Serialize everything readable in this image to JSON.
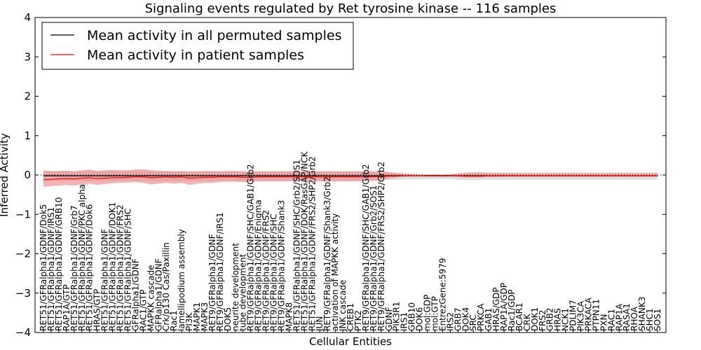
{
  "chart_data": {
    "type": "line",
    "title": "Signaling events regulated by Ret tyrosine kinase -- 116 samples",
    "xlabel": "Cellular Entities",
    "ylabel": "Inferred Activity",
    "ylim": [
      -4,
      4
    ],
    "yticks": [
      -4,
      -3,
      -2,
      -1,
      0,
      1,
      2,
      3,
      4
    ],
    "grid": false,
    "legend_position": "top-left",
    "categories": [
      "RET51/GFRalpha1/GDNF/Dok5",
      "RET51/GFRalpha1/GDNF/IRS1",
      "RET51/GFRalpha1/GDNF/GRB10",
      "RAP1A/GTP",
      "RET51/GFRalpha1/GDNF/Grb7",
      "RET51/GFRalpha1/GDNF/PKC alpha",
      "RET51/GFRalpha1/GDNF/Dok6",
      "HRAS/GTP",
      "RET51/GFRalpha1/GDNF",
      "RET51/GFRalpha1/GDNF/DOK1",
      "RET51/GFRalpha1/GDNF/FRS2",
      "RET51/GFRalpha1/GDNF/SHC",
      "GFRalpha1/GDNF",
      "RAC1/GTP",
      "MAPKK cascade",
      "GFRalpha1/GDNF",
      "Crk/p130 Cas/Paxillin",
      "Rac1",
      "lamellipodium assembly",
      "PI3K",
      "MAPK1",
      "MAPK3",
      "RET9/GFRalpha1/GDNF",
      "RET9/GFRalpha1/GDNF/IRS1",
      "DOK5",
      "neurite development",
      "tube development",
      "RET9/GFRalpha1/GDNF/SHC/GAB1/Grb2",
      "RET9/GFRalpha1/GDNF/Enigma",
      "RET9/GFRalpha1/GDNF/FRS2",
      "RET9/GFRalpha1/GDNF/SHC",
      "RET9/GFRalpha1/GDNF/Shank3",
      "MAPK8",
      "RET51/GFRalpha1/GDNF/SHC/Grb2/SOS1",
      "RET51/GFRalpha1/GDNF/DOK/RasGAP/NCK",
      "RET51/GFRalpha1/GDNF/FRS2/SHP2/Grb2",
      "JUN",
      "RET9/GFRalpha1/GDNF/Shank3/Grb2",
      "activation of MAPKK activity",
      "JNK cascade",
      "CREB1",
      "PTK2",
      "RET9/GFRalpha1/GDNF/SHC/GAB1/Grb2",
      "RET9/GFRalpha1/GDNF/Grb2/SOS1",
      "RET9/GFRalpha1/GDNF/FRS2/SHP2/Grb2",
      "GDNF",
      "PIK3R1",
      "IRS1",
      "GRB10",
      "DOK6",
      "mol:GDP",
      "mol:GTP",
      "EntrezGene:5979",
      "IRS2",
      "GRB7",
      "DOK4",
      "SRC",
      "PRKCA",
      "GAB1",
      "HRAS/GDP",
      "RAP1A/GDP",
      "Rac1/GDP",
      "BCAR1",
      "CRK",
      "DOK1",
      "FRS2",
      "GRB2",
      "HRAS",
      "NCK1",
      "PDLIM7",
      "PIK3CA",
      "PRKACA",
      "PTPN11",
      "PXN",
      "RAC1",
      "RAP1A",
      "RASA1",
      "RHOA",
      "SHANK3",
      "SHC1",
      "SOS1"
    ],
    "series": [
      {
        "name": "Mean activity in all permuted samples",
        "color": "#000000",
        "values": [
          -0.02,
          -0.02,
          -0.02,
          -0.02,
          -0.02,
          -0.02,
          -0.02,
          -0.02,
          -0.02,
          -0.02,
          -0.02,
          -0.02,
          -0.02,
          -0.02,
          -0.02,
          -0.02,
          -0.02,
          -0.02,
          -0.02,
          -0.02,
          -0.02,
          -0.02,
          -0.02,
          -0.02,
          -0.02,
          -0.02,
          -0.02,
          -0.02,
          -0.02,
          -0.02,
          -0.02,
          -0.02,
          -0.02,
          -0.02,
          -0.02,
          -0.02,
          -0.02,
          -0.02,
          -0.02,
          -0.02,
          -0.02,
          -0.02,
          -0.02,
          -0.02,
          -0.02,
          -0.02,
          -0.02,
          -0.02,
          -0.02,
          -0.02,
          -0.02,
          -0.02,
          -0.02,
          -0.02,
          -0.02,
          -0.02,
          -0.02,
          -0.02,
          -0.02,
          -0.02,
          -0.02,
          -0.02,
          -0.02,
          -0.02,
          -0.02,
          -0.02,
          -0.02,
          -0.02,
          -0.02,
          -0.02,
          -0.02,
          -0.02,
          -0.02,
          -0.02,
          -0.02,
          -0.02,
          -0.02,
          -0.02,
          -0.02,
          -0.02,
          -0.02
        ]
      },
      {
        "name": "Mean activity in patient samples",
        "color": "#ff0000",
        "values": [
          -0.12,
          -0.11,
          -0.1,
          -0.09,
          -0.1,
          -0.08,
          -0.07,
          -0.09,
          -0.08,
          -0.07,
          -0.07,
          -0.06,
          -0.05,
          -0.05,
          -0.07,
          -0.06,
          -0.05,
          -0.06,
          -0.05,
          -0.08,
          -0.07,
          -0.06,
          -0.06,
          -0.05,
          -0.05,
          -0.05,
          -0.06,
          -0.06,
          -0.05,
          -0.05,
          -0.05,
          -0.05,
          -0.05,
          -0.05,
          -0.05,
          -0.05,
          -0.05,
          -0.05,
          -0.05,
          -0.05,
          -0.05,
          -0.05,
          -0.05,
          -0.04,
          -0.04,
          -0.03,
          -0.03,
          -0.02,
          -0.02,
          -0.02,
          -0.01,
          -0.01,
          -0.01,
          -0.01,
          -0.02,
          -0.03,
          -0.03,
          -0.03,
          -0.02,
          -0.02,
          -0.02,
          -0.02,
          -0.02,
          -0.02,
          -0.02,
          -0.02,
          -0.02,
          -0.02,
          -0.02,
          -0.02,
          -0.02,
          -0.02,
          -0.02,
          -0.02,
          -0.02,
          -0.02,
          -0.02,
          -0.02,
          -0.02,
          -0.02,
          -0.02
        ]
      }
    ],
    "bands": [
      {
        "name": "permuted-range",
        "color": "#c8c8c8",
        "lower": [
          -0.15,
          -0.15,
          -0.15,
          -0.15,
          -0.15,
          -0.15,
          -0.15,
          -0.15,
          -0.15,
          -0.15,
          -0.15,
          -0.15,
          -0.15,
          -0.15,
          -0.15,
          -0.15,
          -0.15,
          -0.15,
          -0.15,
          -0.15,
          -0.15,
          -0.15,
          -0.15,
          -0.15,
          -0.15,
          -0.15,
          -0.15,
          -0.15,
          -0.15,
          -0.15,
          -0.15,
          -0.15,
          -0.15,
          -0.15,
          -0.15,
          -0.15,
          -0.15,
          -0.15,
          -0.15,
          -0.15,
          -0.15,
          -0.15,
          -0.15,
          -0.15,
          -0.15,
          -0.13,
          -0.12,
          -0.11,
          -0.11,
          -0.11,
          -0.1,
          -0.1,
          -0.1,
          -0.1,
          -0.12,
          -0.13,
          -0.13,
          -0.13,
          -0.12,
          -0.12,
          -0.12,
          -0.12,
          -0.12,
          -0.12,
          -0.12,
          -0.12,
          -0.12,
          -0.12,
          -0.12,
          -0.12,
          -0.12,
          -0.12,
          -0.12,
          -0.12,
          -0.12,
          -0.12,
          -0.12,
          -0.12,
          -0.12,
          -0.12,
          -0.12
        ],
        "upper": [
          0.1,
          0.1,
          0.1,
          0.1,
          0.1,
          0.1,
          0.1,
          0.1,
          0.1,
          0.1,
          0.1,
          0.1,
          0.1,
          0.1,
          0.1,
          0.1,
          0.1,
          0.1,
          0.1,
          0.1,
          0.1,
          0.1,
          0.1,
          0.1,
          0.1,
          0.1,
          0.1,
          0.1,
          0.1,
          0.1,
          0.1,
          0.1,
          0.1,
          0.1,
          0.1,
          0.1,
          0.1,
          0.1,
          0.1,
          0.1,
          0.1,
          0.1,
          0.1,
          0.1,
          0.1,
          0.08,
          0.06,
          0.05,
          0.04,
          0.03,
          0.02,
          0.02,
          0.02,
          0.03,
          0.05,
          0.07,
          0.08,
          0.08,
          0.07,
          0.07,
          0.07,
          0.07,
          0.07,
          0.07,
          0.07,
          0.07,
          0.07,
          0.07,
          0.07,
          0.07,
          0.07,
          0.07,
          0.07,
          0.07,
          0.07,
          0.07,
          0.07,
          0.07,
          0.07,
          0.07,
          0.07
        ]
      },
      {
        "name": "patient-range",
        "color": "#f08080",
        "lower": [
          -0.3,
          -0.28,
          -0.27,
          -0.25,
          -0.27,
          -0.24,
          -0.22,
          -0.25,
          -0.23,
          -0.21,
          -0.2,
          -0.19,
          -0.18,
          -0.2,
          -0.24,
          -0.22,
          -0.2,
          -0.22,
          -0.2,
          -0.25,
          -0.22,
          -0.2,
          -0.2,
          -0.18,
          -0.17,
          -0.17,
          -0.18,
          -0.18,
          -0.16,
          -0.16,
          -0.16,
          -0.16,
          -0.16,
          -0.16,
          -0.16,
          -0.16,
          -0.16,
          -0.16,
          -0.16,
          -0.16,
          -0.16,
          -0.16,
          -0.15,
          -0.14,
          -0.12,
          -0.09,
          -0.06,
          -0.04,
          -0.02,
          -0.01,
          -0.01,
          -0.01,
          -0.01,
          -0.02,
          -0.05,
          -0.07,
          -0.07,
          -0.06,
          -0.05,
          -0.05,
          -0.04,
          -0.04,
          -0.04,
          -0.04,
          -0.04,
          -0.04,
          -0.04,
          -0.04,
          -0.04,
          -0.04,
          -0.04,
          -0.04,
          -0.04,
          -0.04,
          -0.04,
          -0.04,
          -0.04,
          -0.04,
          -0.04,
          -0.04,
          -0.04
        ],
        "upper": [
          0.12,
          0.1,
          0.1,
          0.11,
          0.09,
          0.12,
          0.14,
          0.1,
          0.12,
          0.13,
          0.12,
          0.12,
          0.14,
          0.15,
          0.12,
          0.1,
          0.1,
          0.09,
          0.1,
          0.08,
          0.09,
          0.1,
          0.1,
          0.09,
          0.1,
          0.1,
          0.09,
          0.08,
          0.09,
          0.09,
          0.09,
          0.09,
          0.09,
          0.09,
          0.09,
          0.09,
          0.09,
          0.09,
          0.09,
          0.09,
          0.09,
          0.09,
          0.09,
          0.09,
          0.09,
          0.07,
          0.05,
          0.03,
          0.01,
          0,
          0,
          0,
          0,
          0,
          0.03,
          0.05,
          0.06,
          0.06,
          0.05,
          0.05,
          0.04,
          0.04,
          0.04,
          0.04,
          0.04,
          0.04,
          0.04,
          0.04,
          0.04,
          0.04,
          0.04,
          0.04,
          0.04,
          0.04,
          0.04,
          0.04,
          0.04,
          0.04,
          0.04,
          0.04,
          0.04
        ]
      }
    ],
    "reference_line": {
      "value": 0,
      "style": "dotted"
    }
  }
}
